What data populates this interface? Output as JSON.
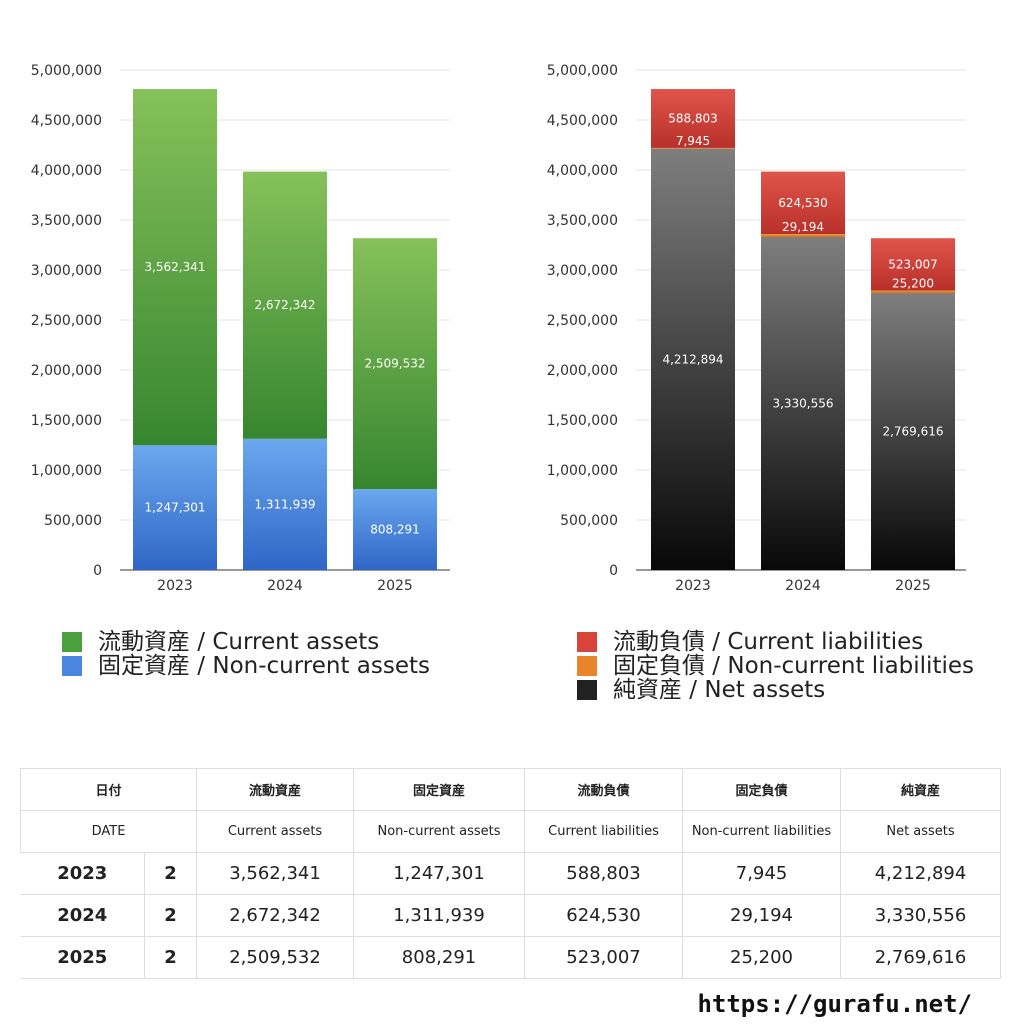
{
  "chart_data": [
    {
      "type": "bar",
      "stacked": true,
      "categories": [
        "2023",
        "2024",
        "2025"
      ],
      "ylim": [
        0,
        5000000
      ],
      "yticks": [
        "0",
        "500,000",
        "1,000,000",
        "1,500,000",
        "2,000,000",
        "2,500,000",
        "3,000,000",
        "3,500,000",
        "4,000,000",
        "4,500,000",
        "5,000,000"
      ],
      "grid": true,
      "series": [
        {
          "name": "固定資産 / Non-current assets",
          "values": [
            1247301,
            1311939,
            808291
          ],
          "labels": [
            "1,247,301",
            "1,311,939",
            "808,291"
          ],
          "color_top": "#6ba8ef",
          "color_bottom": "#2f66c6"
        },
        {
          "name": "流動資産 / Current assets",
          "values": [
            3562341,
            2672342,
            2509532
          ],
          "labels": [
            "3,562,341",
            "2,672,342",
            "2,509,532"
          ],
          "color_top": "#86c15a",
          "color_bottom": "#36862f"
        }
      ]
    },
    {
      "type": "bar",
      "stacked": true,
      "categories": [
        "2023",
        "2024",
        "2025"
      ],
      "ylim": [
        0,
        5000000
      ],
      "yticks": [
        "0",
        "500,000",
        "1,000,000",
        "1,500,000",
        "2,000,000",
        "2,500,000",
        "3,000,000",
        "3,500,000",
        "4,000,000",
        "4,500,000",
        "5,000,000"
      ],
      "grid": true,
      "series": [
        {
          "name": "純資産 / Net assets",
          "values": [
            4212894,
            3330556,
            2769616
          ],
          "labels": [
            "4,212,894",
            "3,330,556",
            "2,769,616"
          ],
          "color_top": "#7e7e7e",
          "color_bottom": "#080808"
        },
        {
          "name": "固定負債 / Non-current liabilities",
          "values": [
            7945,
            29194,
            25200
          ],
          "labels": [
            "7,945",
            "29,194",
            "25,200"
          ],
          "color_top": "#f0a040",
          "color_bottom": "#d06a18"
        },
        {
          "name": "流動負債 / Current liabilities",
          "values": [
            588803,
            624530,
            523007
          ],
          "labels": [
            "588,803",
            "624,530",
            "523,007"
          ],
          "color_top": "#e0554a",
          "color_bottom": "#b8302a"
        }
      ]
    }
  ],
  "legends": {
    "left": [
      {
        "label": "流動資産 / Current assets",
        "color": "#4aa03c"
      },
      {
        "label": "固定資産 / Non-current assets",
        "color": "#4a86e0"
      }
    ],
    "right": [
      {
        "label": "流動負債 / Current liabilities",
        "color": "#d9443a"
      },
      {
        "label": "固定負債 / Non-current liabilities",
        "color": "#e8852a"
      },
      {
        "label": "純資産 / Net assets",
        "color": "#222222"
      }
    ]
  },
  "table": {
    "header_jp": [
      "日付",
      "",
      "流動資産",
      "固定資産",
      "流動負債",
      "固定負債",
      "純資産"
    ],
    "header_en": [
      "DATE",
      "",
      "Current assets",
      "Non-current assets",
      "Current liabilities",
      "Non-current liabilities",
      "Net assets"
    ],
    "rows": [
      [
        "2023",
        "2",
        "3,562,341",
        "1,247,301",
        "588,803",
        "7,945",
        "4,212,894"
      ],
      [
        "2024",
        "2",
        "2,672,342",
        "1,311,939",
        "624,530",
        "29,194",
        "3,330,556"
      ],
      [
        "2025",
        "2",
        "2,509,532",
        "808,291",
        "523,007",
        "25,200",
        "2,769,616"
      ]
    ]
  },
  "footer": "https://gurafu.net/"
}
